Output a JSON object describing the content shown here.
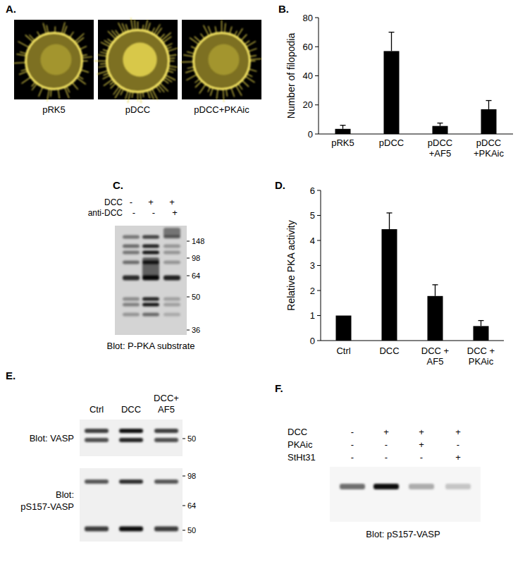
{
  "panels": {
    "A": {
      "label": "A.",
      "images": [
        "pRK5",
        "pDCC",
        "pDCC+PKAic"
      ]
    },
    "C": {
      "label": "C.",
      "rows": [
        {
          "name": "DCC",
          "signs": [
            "-",
            "+",
            "+"
          ]
        },
        {
          "name": "anti-DCC",
          "signs": [
            "-",
            "-",
            "+"
          ]
        }
      ],
      "markers": [
        148,
        98,
        64,
        50,
        36
      ],
      "caption": "Blot: P-PKA substrate"
    },
    "E": {
      "label": "E.",
      "lanes": [
        "Ctrl",
        "DCC",
        "DCC+\nAF5"
      ],
      "blots": [
        {
          "caption": "Blot: VASP",
          "markers": [
            50
          ]
        },
        {
          "caption": "Blot:\npS157-VASP",
          "markers": [
            98,
            64,
            50
          ]
        }
      ]
    },
    "F": {
      "label": "F.",
      "rows": [
        {
          "name": "DCC",
          "signs": [
            "-",
            "+",
            "+",
            "+"
          ]
        },
        {
          "name": "PKAic",
          "signs": [
            "-",
            "-",
            "+",
            "-"
          ]
        },
        {
          "name": "StHt31",
          "signs": [
            "-",
            "-",
            "-",
            "+"
          ]
        }
      ],
      "caption": "Blot: pS157-VASP"
    }
  },
  "chart_data": [
    {
      "type": "bar",
      "title": "B.",
      "ylabel": "Number of filopodia",
      "categories": [
        "pRK5",
        "pDCC",
        "pDCC\n+AF5",
        "pDCC\n+PKAic"
      ],
      "values": [
        3.5,
        57,
        5.5,
        17
      ],
      "errors": [
        2.5,
        13,
        2,
        6
      ],
      "color": "#000000",
      "ylim": [
        0,
        80
      ],
      "yticks": [
        0,
        20,
        40,
        60,
        80
      ],
      "grid": false
    },
    {
      "type": "bar",
      "title": "D.",
      "ylabel": "Relative PKA activity",
      "categories": [
        "Ctrl",
        "DCC",
        "DCC +\nAF5",
        "DCC +\nPKAic"
      ],
      "values": [
        1,
        4.45,
        1.78,
        0.58
      ],
      "errors": [
        0,
        0.65,
        0.45,
        0.22
      ],
      "color": "#000000",
      "ylim": [
        0,
        6
      ],
      "yticks": [
        0,
        1,
        2,
        3,
        4,
        5,
        6
      ],
      "grid": false
    }
  ]
}
